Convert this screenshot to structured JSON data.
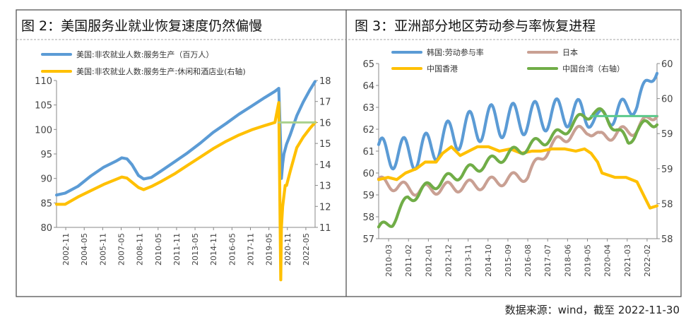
{
  "source": "数据来源：wind，截至 2022-11-30",
  "colors": {
    "blue": "#5B9BD5",
    "yellow": "#FFC000",
    "brown": "#C9A093",
    "green": "#70AD47",
    "lightgreen": "#A9D18E",
    "mint": "#5BC98B"
  },
  "chart_data": [
    {
      "type": "line",
      "title": "图 2：美国服务业就业恢复速度仍然偏慢",
      "legend": [
        "美国:非农就业人数:服务生产（百万人）",
        "美国:非农就业人数:服务生产:休闲和酒店业(右轴)"
      ],
      "ylim_left": [
        80,
        110
      ],
      "yticks_left": [
        "80",
        "85",
        "90",
        "95",
        "100",
        "105",
        "110"
      ],
      "ylim_right": [
        11,
        18
      ],
      "yticks_right": [
        "11",
        "12",
        "13",
        "14",
        "15",
        "16",
        "17",
        "18"
      ],
      "xlim": [
        2002.83,
        2022.92
      ],
      "xticks": [
        "2002-11",
        "2004-05",
        "2005-11",
        "2007-05",
        "2008-11",
        "2010-05",
        "2011-11",
        "2013-05",
        "2014-11",
        "2016-05",
        "2017-11",
        "2019-05",
        "2020-11",
        "2022-05"
      ],
      "series": [
        {
          "name": "美国:非农就业人数:服务生产（百万人）",
          "axis": "left",
          "color": "#5B9BD5",
          "x": [
            2002.83,
            2003.5,
            2004.5,
            2005.5,
            2006.5,
            2007.5,
            2007.9,
            2008.3,
            2008.7,
            2009.2,
            2009.6,
            2010.2,
            2011,
            2012,
            2013,
            2014,
            2015,
            2016,
            2017,
            2018,
            2019,
            2019.8,
            2020.1,
            2020.25,
            2020.3,
            2020.4,
            2020.5,
            2020.7,
            2021,
            2021.5,
            2022,
            2022.5,
            2022.92
          ],
          "y": [
            86.6,
            87,
            88.4,
            90.5,
            92.3,
            93.6,
            94.2,
            94.0,
            92.8,
            90.6,
            89.9,
            90.2,
            91.6,
            93.4,
            95.2,
            97.2,
            99.4,
            101.2,
            103.1,
            104.8,
            106.5,
            107.8,
            108.4,
            96,
            90,
            93,
            95,
            97,
            99,
            102.8,
            105.6,
            108,
            109.8
          ]
        },
        {
          "name": "美国:非农就业人数:服务生产:休闲和酒店业(右轴)",
          "axis": "right",
          "color": "#FFC000",
          "x": [
            2002.83,
            2003.5,
            2004.5,
            2005.5,
            2006.5,
            2007.5,
            2007.9,
            2008.3,
            2008.7,
            2009.2,
            2009.6,
            2010.2,
            2011,
            2012,
            2013,
            2014,
            2015,
            2016,
            2017,
            2018,
            2019,
            2019.8,
            2020.1,
            2020.25,
            2020.3,
            2020.4,
            2020.5,
            2020.6,
            2020.7,
            2021,
            2021.5,
            2022,
            2022.5,
            2022.92
          ],
          "y": [
            12.1,
            12.1,
            12.45,
            12.75,
            13.05,
            13.3,
            13.4,
            13.35,
            13.15,
            12.9,
            12.8,
            12.95,
            13.2,
            13.55,
            13.95,
            14.35,
            14.75,
            15.1,
            15.4,
            15.65,
            15.85,
            16.0,
            16.95,
            8.5,
            11.0,
            12.0,
            12.5,
            13.0,
            13.0,
            13.7,
            14.8,
            15.3,
            15.7,
            16.0
          ]
        },
        {
          "name": "pre-pandemic reference",
          "axis": "right",
          "color": "#A9D18E",
          "x": [
            2020.1,
            2022.92
          ],
          "y": [
            16.0,
            16.0
          ]
        }
      ]
    },
    {
      "type": "line",
      "title": "图 3：亚洲部分地区劳动参与率恢复进程",
      "legend": [
        "韩国:劳动参与率",
        "日本",
        "中国香港",
        "中国台湾（右轴）"
      ],
      "ylim_left": [
        57,
        65
      ],
      "yticks_left": [
        "57",
        "58",
        "59",
        "60",
        "61",
        "62",
        "63",
        "64",
        "65"
      ],
      "ylim_right": [
        58,
        60
      ],
      "yticks_right": [
        "58",
        "58",
        "59",
        "59",
        "60",
        "60"
      ],
      "xlim": [
        2010.17,
        2022.92
      ],
      "xticks": [
        "2010-03",
        "2011-02",
        "2012-01",
        "2012-12",
        "2013-11",
        "2014-10",
        "2015-09",
        "2016-08",
        "2017-07",
        "2018-06",
        "2019-05",
        "2020-04",
        "2021-03",
        "2022-02"
      ],
      "series": [
        {
          "name": "韩国:劳动参与率",
          "axis": "left",
          "color": "#5B9BD5",
          "kind": "seasonal",
          "trend_x": [
            2010.17,
            2012,
            2013.5,
            2015,
            2017,
            2019,
            2020,
            2021,
            2022,
            2022.92
          ],
          "trend_y": [
            60.9,
            60.9,
            61.7,
            62.3,
            62.5,
            62.8,
            62.5,
            62.7,
            63.2,
            64.8
          ],
          "amp_x": [
            2010.17,
            2015,
            2019.5,
            2020.2,
            2021,
            2022.92
          ],
          "amp_y": [
            0.7,
            0.8,
            0.65,
            0.25,
            0.55,
            0.3
          ]
        },
        {
          "name": "日本",
          "axis": "left",
          "color": "#C9A093",
          "kind": "seasonal",
          "trend_x": [
            2010.17,
            2011,
            2012,
            2013,
            2014,
            2015,
            2016,
            2017,
            2018,
            2019,
            2019.8,
            2020.3,
            2021,
            2022,
            2022.92
          ],
          "trend_y": [
            59.6,
            59.4,
            59.2,
            59.3,
            59.4,
            59.5,
            59.7,
            59.9,
            61.2,
            61.8,
            62.0,
            61.6,
            61.8,
            62.0,
            62.8
          ],
          "amp_x": [
            2010.17,
            2022.92
          ],
          "amp_y": [
            0.25,
            0.25
          ]
        },
        {
          "name": "中国香港",
          "axis": "left",
          "color": "#FFC000",
          "x": [
            2010.17,
            2010.6,
            2011,
            2011.4,
            2011.9,
            2012.3,
            2012.8,
            2013.1,
            2013.5,
            2013.9,
            2014.3,
            2014.7,
            2015.2,
            2015.7,
            2016.2,
            2016.7,
            2017.2,
            2017.6,
            2018.1,
            2018.7,
            2019.2,
            2019.6,
            2019.9,
            2020.2,
            2020.4,
            2020.7,
            2021,
            2021.5,
            2022,
            2022.4,
            2022.6,
            2022.92
          ],
          "y": [
            59.7,
            59.8,
            59.7,
            60.0,
            60.2,
            60.5,
            60.5,
            60.9,
            61.2,
            60.8,
            61.0,
            61.2,
            61.2,
            61.0,
            61.1,
            60.9,
            61.0,
            61.0,
            61.1,
            61.1,
            61.0,
            61.1,
            60.9,
            60.5,
            60.0,
            59.9,
            59.8,
            59.8,
            59.6,
            58.8,
            58.4,
            58.5
          ]
        },
        {
          "name": "中国台湾（右轴）",
          "axis": "right",
          "color": "#70AD47",
          "kind": "seasonal",
          "trend_x": [
            2010.17,
            2010.8,
            2011.5,
            2012.5,
            2013.5,
            2014.5,
            2015.5,
            2016.5,
            2017.5,
            2018.5,
            2019,
            2019.6,
            2020,
            2020.6,
            2021.2,
            2021.6,
            2022,
            2022.92
          ],
          "trend_y": [
            58.1,
            58.2,
            58.45,
            58.6,
            58.7,
            58.8,
            58.9,
            59.0,
            59.1,
            59.2,
            59.3,
            59.4,
            59.45,
            59.4,
            59.2,
            59.1,
            59.25,
            59.35
          ],
          "amp_x": [
            2010.17,
            2022.92
          ],
          "amp_y": [
            0.06,
            0.06
          ]
        },
        {
          "name": "reference line",
          "axis": "right",
          "color": "#5BC98B",
          "x": [
            2019.9,
            2022.92
          ],
          "y": [
            59.4,
            59.4
          ]
        }
      ]
    }
  ]
}
